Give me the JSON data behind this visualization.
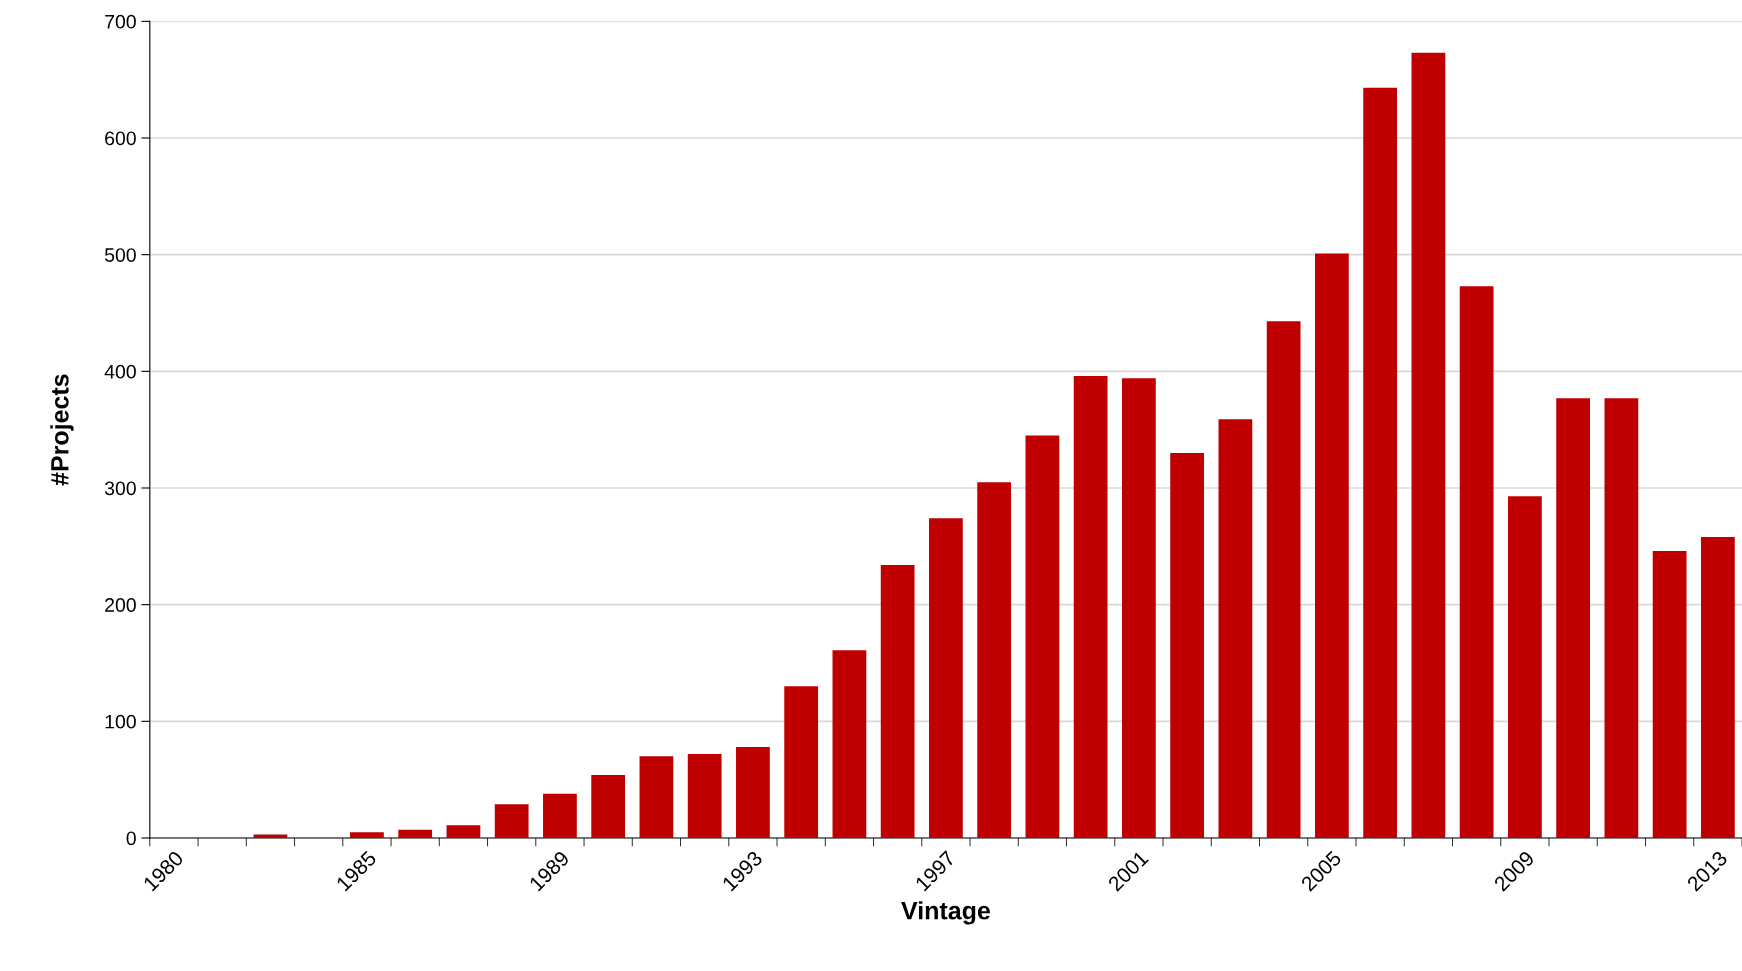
{
  "chart_data": {
    "type": "bar",
    "xlabel": "Vintage",
    "ylabel": "#Projects",
    "categories": [
      "1980",
      null,
      null,
      null,
      "1985",
      null,
      null,
      null,
      "1989",
      null,
      null,
      null,
      "1993",
      null,
      null,
      null,
      "1997",
      null,
      null,
      null,
      "2001",
      null,
      null,
      null,
      "2005",
      null,
      null,
      null,
      "2009",
      null,
      null,
      null,
      "2013"
    ],
    "values": [
      0,
      0,
      3,
      0,
      5,
      7,
      11,
      29,
      38,
      54,
      70,
      72,
      78,
      130,
      161,
      234,
      274,
      305,
      345,
      396,
      394,
      330,
      359,
      443,
      501,
      643,
      673,
      473,
      293,
      377,
      377,
      246,
      258
    ],
    "color": "#c00000",
    "ylim": [
      0,
      700
    ],
    "yticks": [
      0,
      100,
      200,
      300,
      400,
      500,
      600,
      700
    ],
    "grid": "y",
    "legend": false
  }
}
